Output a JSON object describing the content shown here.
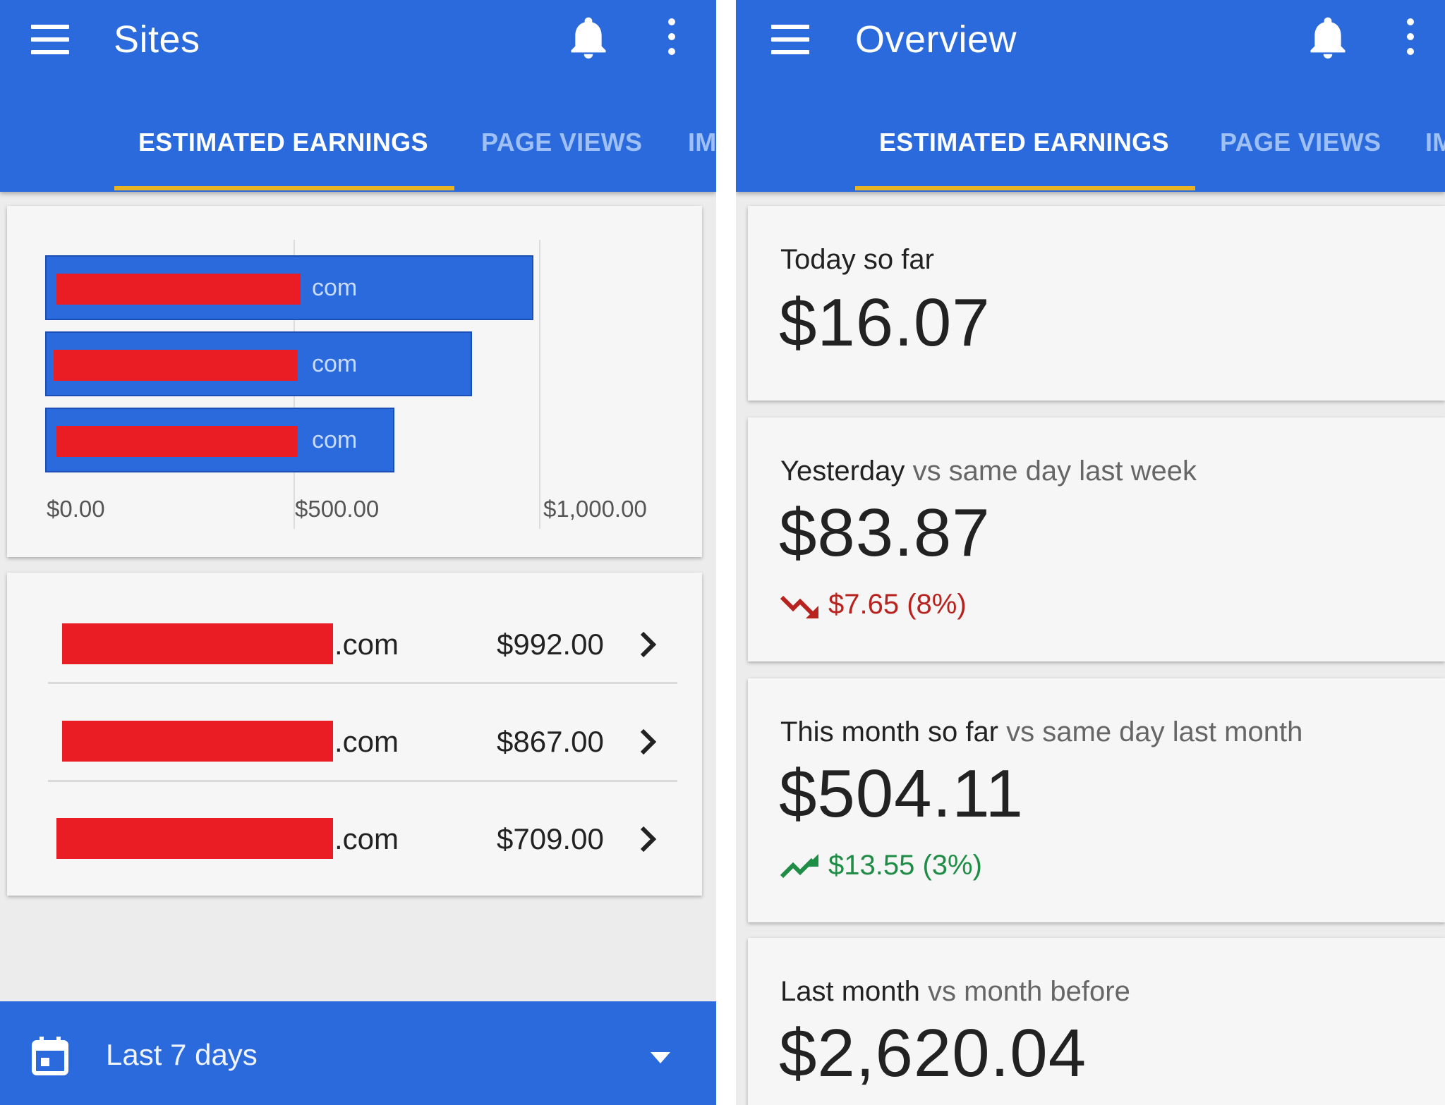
{
  "left": {
    "title": "Sites",
    "tabs": [
      {
        "label": "ESTIMATED EARNINGS",
        "active": true
      },
      {
        "label": "PAGE VIEWS",
        "active": false
      },
      {
        "label": "IM",
        "active": false
      }
    ],
    "chart_data": {
      "type": "bar",
      "orientation": "horizontal",
      "categories": [
        ".com",
        ".com",
        ".com"
      ],
      "values": [
        992.0,
        867.0,
        709.0
      ],
      "xlim": [
        0,
        1000
      ],
      "tick_labels": [
        "$0.00",
        "$500.00",
        "$1,000.00"
      ],
      "bar_label_suffix": "com",
      "colors": {
        "bar": "#2a6adc",
        "redaction": "#ea1c24"
      }
    },
    "sites": [
      {
        "domain": ".com",
        "amount": "$992.00"
      },
      {
        "domain": ".com",
        "amount": "$867.00"
      },
      {
        "domain": ".com",
        "amount": "$709.00"
      }
    ],
    "date_range": "Last 7 days"
  },
  "right": {
    "title": "Overview",
    "tabs": [
      {
        "label": "ESTIMATED EARNINGS",
        "active": true
      },
      {
        "label": "PAGE VIEWS",
        "active": false
      },
      {
        "label": "IM",
        "active": false
      }
    ],
    "cards": {
      "today": {
        "label": "Today so far",
        "value": "$16.07"
      },
      "yesterday": {
        "label": "Yesterday",
        "compare": "vs same day last week",
        "value": "$83.87",
        "change": "$7.65 (8%)",
        "trend": "down"
      },
      "month": {
        "label": "This month so far",
        "compare": "vs same day last month",
        "value": "$504.11",
        "change": "$13.55 (3%)",
        "trend": "up"
      },
      "lastmonth": {
        "label": "Last month",
        "compare": "vs month before",
        "value": "$2,620.04"
      }
    }
  },
  "colors": {
    "accent": "#2a6adc",
    "tab_indicator": "#e9b321",
    "negative": "#b8231f",
    "positive": "#1f8d45",
    "redaction": "#ea1c24"
  },
  "icons": [
    "menu-icon",
    "bell-icon",
    "more-vert-icon",
    "chevron-right-icon",
    "calendar-icon",
    "dropdown-arrow-icon",
    "trending-down-icon",
    "trending-up-icon"
  ]
}
